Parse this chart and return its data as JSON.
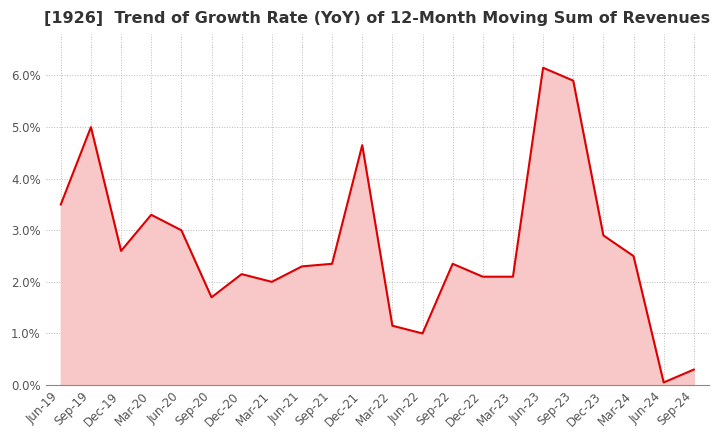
{
  "title": "[1926]  Trend of Growth Rate (YoY) of 12-Month Moving Sum of Revenues",
  "x_labels": [
    "Jun-19",
    "Sep-19",
    "Dec-19",
    "Mar-20",
    "Jun-20",
    "Sep-20",
    "Dec-20",
    "Mar-21",
    "Jun-21",
    "Sep-21",
    "Dec-21",
    "Mar-22",
    "Jun-22",
    "Sep-22",
    "Dec-22",
    "Mar-23",
    "Jun-23",
    "Sep-23",
    "Dec-23",
    "Mar-24",
    "Jun-24",
    "Sep-24"
  ],
  "y_values": [
    3.5,
    5.0,
    2.6,
    3.3,
    3.0,
    1.7,
    2.15,
    2.0,
    2.3,
    2.35,
    4.65,
    1.15,
    1.0,
    2.35,
    2.1,
    2.1,
    6.15,
    5.9,
    2.9,
    2.5,
    0.05,
    0.3
  ],
  "ylim": [
    0.0,
    6.8
  ],
  "yticks": [
    0.0,
    1.0,
    2.0,
    3.0,
    4.0,
    5.0,
    6.0
  ],
  "line_color": "#dd0000",
  "fill_color": "#f8c8c8",
  "bg_color": "#ffffff",
  "grid_color": "#bbbbbb",
  "title_color": "#333333",
  "title_fontsize": 11.5,
  "tick_color": "#555555",
  "tick_fontsize": 8.5
}
